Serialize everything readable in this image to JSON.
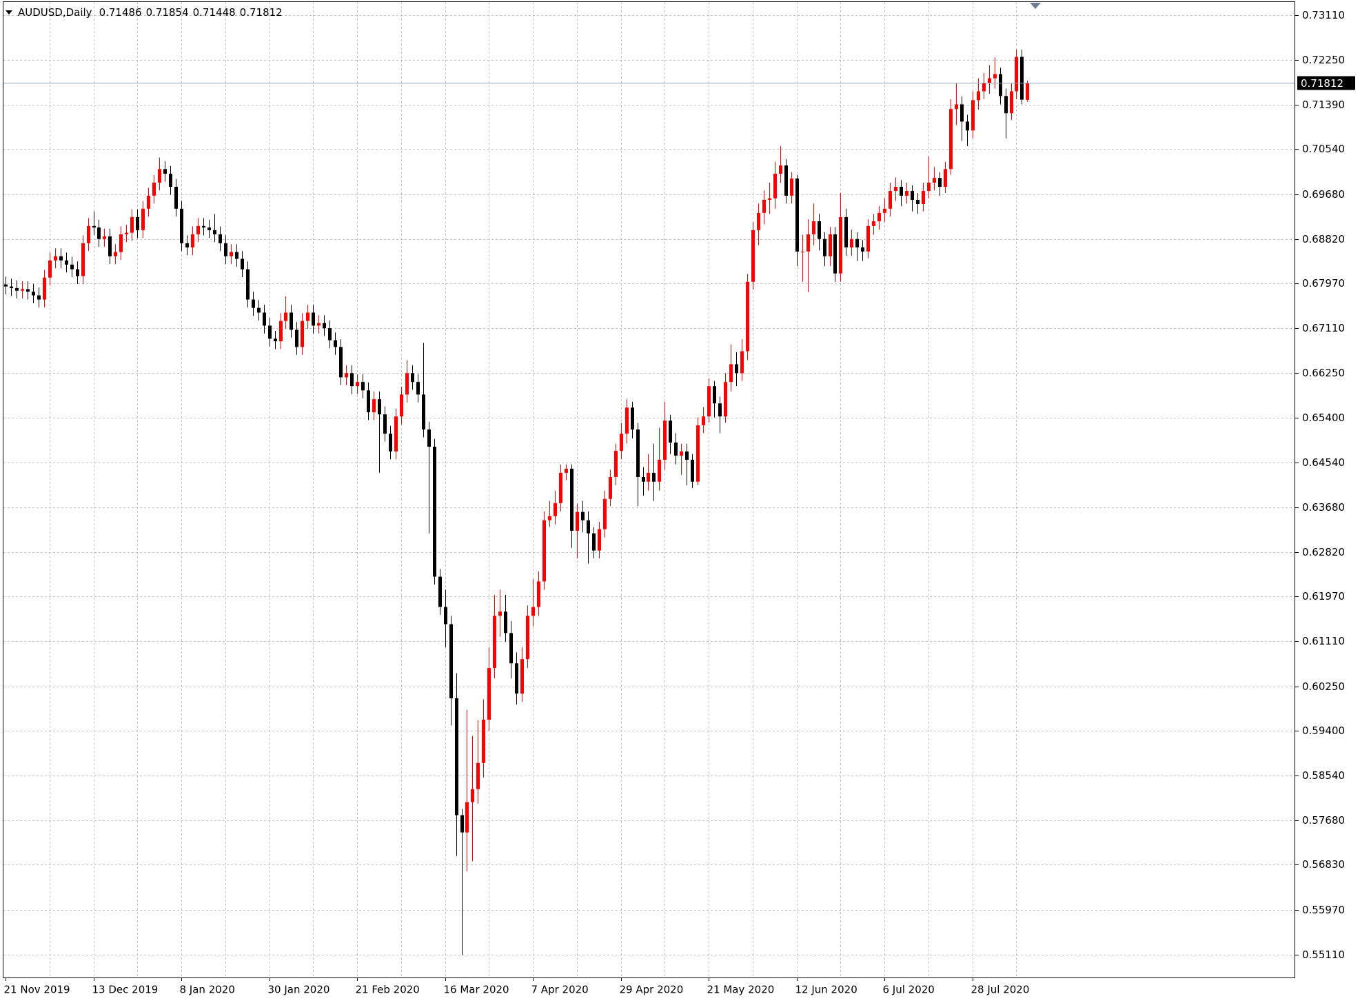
{
  "chart_data": {
    "type": "candlestick",
    "title": "AUDUSD,Daily",
    "up_color": "#ff0000",
    "down_color": "#000000",
    "grid": true,
    "ylim": [
      0.5467,
      0.7336
    ],
    "yticks": [
      {
        "value": 0.7311,
        "label": "0.73110"
      },
      {
        "value": 0.7225,
        "label": "0.72250"
      },
      {
        "value": 0.7139,
        "label": "0.71390"
      },
      {
        "value": 0.7054,
        "label": "0.70540"
      },
      {
        "value": 0.6968,
        "label": "0.69680"
      },
      {
        "value": 0.6882,
        "label": "0.68820"
      },
      {
        "value": 0.6797,
        "label": "0.67970"
      },
      {
        "value": 0.6711,
        "label": "0.67110"
      },
      {
        "value": 0.6625,
        "label": "0.66250"
      },
      {
        "value": 0.654,
        "label": "0.65400"
      },
      {
        "value": 0.6454,
        "label": "0.64540"
      },
      {
        "value": 0.6368,
        "label": "0.63680"
      },
      {
        "value": 0.6282,
        "label": "0.62820"
      },
      {
        "value": 0.6197,
        "label": "0.61970"
      },
      {
        "value": 0.6111,
        "label": "0.61110"
      },
      {
        "value": 0.6025,
        "label": "0.60250"
      },
      {
        "value": 0.594,
        "label": "0.59400"
      },
      {
        "value": 0.5854,
        "label": "0.58540"
      },
      {
        "value": 0.5768,
        "label": "0.57680"
      },
      {
        "value": 0.5683,
        "label": "0.56830"
      },
      {
        "value": 0.5597,
        "label": "0.55970"
      },
      {
        "value": 0.5511,
        "label": "0.55110"
      }
    ],
    "categories": [
      "21 Nov 2019",
      null,
      null,
      null,
      null,
      null,
      null,
      null,
      null,
      null,
      null,
      null,
      null,
      null,
      null,
      null,
      "13 Dec 2019",
      null,
      null,
      null,
      null,
      null,
      null,
      null,
      null,
      null,
      null,
      null,
      null,
      null,
      null,
      null,
      "8 Jan 2020",
      null,
      null,
      null,
      null,
      null,
      null,
      null,
      null,
      null,
      null,
      null,
      null,
      null,
      null,
      null,
      "30 Jan 2020",
      null,
      null,
      null,
      null,
      null,
      null,
      null,
      null,
      null,
      null,
      null,
      null,
      null,
      null,
      null,
      "21 Feb 2020",
      null,
      null,
      null,
      null,
      null,
      null,
      null,
      null,
      null,
      null,
      null,
      null,
      null,
      null,
      null,
      "16 Mar 2020",
      null,
      null,
      null,
      null,
      null,
      null,
      null,
      null,
      null,
      null,
      null,
      null,
      null,
      null,
      null,
      "7 Apr 2020",
      null,
      null,
      null,
      null,
      null,
      null,
      null,
      null,
      null,
      null,
      null,
      null,
      null,
      null,
      null,
      "29 Apr 2020",
      null,
      null,
      null,
      null,
      null,
      null,
      null,
      null,
      null,
      null,
      null,
      null,
      null,
      null,
      null,
      "21 May 2020",
      null,
      null,
      null,
      null,
      null,
      null,
      null,
      null,
      null,
      null,
      null,
      null,
      null,
      null,
      null,
      "12 Jun 2020",
      null,
      null,
      null,
      null,
      null,
      null,
      null,
      null,
      null,
      null,
      null,
      null,
      null,
      null,
      null,
      "6 Jul 2020",
      null,
      null,
      null,
      null,
      null,
      null,
      null,
      null,
      null,
      null,
      null,
      null,
      null,
      null,
      null,
      "28 Jul 2020",
      null,
      null,
      null,
      null,
      null,
      null,
      null,
      null,
      null,
      null
    ],
    "open": [
      0.6795,
      0.6791,
      0.6788,
      0.6783,
      0.6786,
      0.6781,
      0.6774,
      0.6766,
      0.6808,
      0.6841,
      0.6849,
      0.6841,
      0.6833,
      0.6824,
      0.6811,
      0.6874,
      0.6907,
      0.6904,
      0.6882,
      0.6887,
      0.6849,
      0.6857,
      0.6891,
      0.6894,
      0.6924,
      0.6899,
      0.694,
      0.6965,
      0.699,
      0.7016,
      0.7007,
      0.6982,
      0.694,
      0.6874,
      0.6866,
      0.6891,
      0.6907,
      0.6904,
      0.6899,
      0.6891,
      0.6874,
      0.6849,
      0.6857,
      0.6844,
      0.6824,
      0.6766,
      0.675,
      0.6741,
      0.6716,
      0.6691,
      0.6686,
      0.6725,
      0.6741,
      0.6708,
      0.6675,
      0.6725,
      0.6741,
      0.6716,
      0.6721,
      0.6711,
      0.6688,
      0.6675,
      0.6617,
      0.6625,
      0.66,
      0.6608,
      0.6592,
      0.655,
      0.6575,
      0.6546,
      0.6509,
      0.6475,
      0.6542,
      0.6584,
      0.6625,
      0.6608,
      0.6584,
      0.6517,
      0.6484,
      0.6235,
      0.6177,
      0.6144,
      0.6002,
      0.5778,
      0.5745,
      0.5803,
      0.5828,
      0.5878,
      0.5961,
      0.606,
      0.616,
      0.6168,
      0.6127,
      0.6069,
      0.6011,
      0.6077,
      0.616,
      0.6177,
      0.6226,
      0.6343,
      0.6351,
      0.6376,
      0.6434,
      0.6442,
      0.6323,
      0.6359,
      0.6343,
      0.6318,
      0.6285,
      0.6326,
      0.6384,
      0.6426,
      0.6476,
      0.6509,
      0.6559,
      0.6517,
      0.6426,
      0.6417,
      0.6434,
      0.6417,
      0.6459,
      0.6534,
      0.6492,
      0.6467,
      0.6475,
      0.6459,
      0.6417,
      0.6525,
      0.6542,
      0.66,
      0.6567,
      0.6542,
      0.6608,
      0.6642,
      0.6625,
      0.6667,
      0.68,
      0.6899,
      0.6932,
      0.6957,
      0.696,
      0.7007,
      0.7023,
      0.6965,
      0.6998,
      0.6858,
      0.6858,
      0.6891,
      0.6916,
      0.6882,
      0.6849,
      0.6891,
      0.6816,
      0.6924,
      0.6866,
      0.6882,
      0.6866,
      0.6858,
      0.6907,
      0.6916,
      0.6932,
      0.694,
      0.6974,
      0.6982,
      0.6965,
      0.6974,
      0.6957,
      0.6949,
      0.6974,
      0.699,
      0.6999,
      0.6982,
      0.7016,
      0.7131,
      0.714,
      0.7107,
      0.709,
      0.7148,
      0.7165,
      0.7181,
      0.719,
      0.7198,
      0.7156,
      0.7123,
      0.7165,
      0.7231,
      0.71486
    ],
    "high": [
      0.681,
      0.6806,
      0.6803,
      0.6801,
      0.6801,
      0.6796,
      0.6789,
      0.6823,
      0.6856,
      0.6864,
      0.6864,
      0.6856,
      0.6848,
      0.6839,
      0.6889,
      0.6922,
      0.6935,
      0.6919,
      0.6902,
      0.6902,
      0.6872,
      0.6906,
      0.6909,
      0.6939,
      0.6939,
      0.6955,
      0.698,
      0.7005,
      0.7038,
      0.7031,
      0.7022,
      0.6997,
      0.6955,
      0.6889,
      0.6906,
      0.6922,
      0.6922,
      0.6919,
      0.693,
      0.6906,
      0.6889,
      0.6872,
      0.6872,
      0.6859,
      0.6839,
      0.6781,
      0.6765,
      0.6756,
      0.6731,
      0.6706,
      0.674,
      0.6772,
      0.6756,
      0.6723,
      0.674,
      0.6756,
      0.6756,
      0.6736,
      0.6736,
      0.6726,
      0.6703,
      0.669,
      0.664,
      0.664,
      0.6623,
      0.6623,
      0.6607,
      0.659,
      0.659,
      0.6561,
      0.6524,
      0.6557,
      0.6599,
      0.665,
      0.664,
      0.6623,
      0.6683,
      0.6532,
      0.6499,
      0.625,
      0.621,
      0.616,
      0.605,
      0.579,
      0.598,
      0.593,
      0.596,
      0.6,
      0.61,
      0.62,
      0.621,
      0.62,
      0.615,
      0.609,
      0.61,
      0.618,
      0.623,
      0.6245,
      0.636,
      0.638,
      0.64,
      0.645,
      0.645,
      0.645,
      0.6375,
      0.638,
      0.636,
      0.633,
      0.634,
      0.64,
      0.644,
      0.649,
      0.653,
      0.6575,
      0.657,
      0.653,
      0.6445,
      0.647,
      0.649,
      0.652,
      0.657,
      0.6545,
      0.651,
      0.649,
      0.649,
      0.647,
      0.654,
      0.656,
      0.6615,
      0.661,
      0.658,
      0.6625,
      0.668,
      0.6665,
      0.669,
      0.6815,
      0.6915,
      0.695,
      0.6975,
      0.699,
      0.703,
      0.706,
      0.7035,
      0.701,
      0.7005,
      0.689,
      0.692,
      0.695,
      0.693,
      0.6895,
      0.6905,
      0.6905,
      0.697,
      0.694,
      0.69,
      0.6895,
      0.688,
      0.692,
      0.693,
      0.6945,
      0.696,
      0.699,
      0.7,
      0.6995,
      0.699,
      0.6985,
      0.697,
      0.699,
      0.704,
      0.702,
      0.701,
      0.703,
      0.715,
      0.718,
      0.7155,
      0.712,
      0.7165,
      0.719,
      0.72,
      0.7215,
      0.723,
      0.721,
      0.717,
      0.718,
      0.7245,
      0.7245,
      0.71854
    ],
    "low": [
      0.6776,
      0.6773,
      0.6768,
      0.6768,
      0.6766,
      0.6759,
      0.6751,
      0.6751,
      0.6793,
      0.6826,
      0.6826,
      0.6818,
      0.6809,
      0.6796,
      0.6796,
      0.6859,
      0.6889,
      0.6867,
      0.6867,
      0.6834,
      0.6834,
      0.6842,
      0.6876,
      0.6879,
      0.6884,
      0.6884,
      0.6925,
      0.695,
      0.6975,
      0.6992,
      0.6967,
      0.6925,
      0.6859,
      0.6851,
      0.6851,
      0.6876,
      0.6889,
      0.6884,
      0.6876,
      0.6859,
      0.6834,
      0.6834,
      0.6829,
      0.6809,
      0.6751,
      0.6735,
      0.6726,
      0.6701,
      0.6676,
      0.6671,
      0.6671,
      0.671,
      0.6693,
      0.666,
      0.666,
      0.671,
      0.6701,
      0.6701,
      0.6696,
      0.6673,
      0.666,
      0.6602,
      0.6602,
      0.6585,
      0.6585,
      0.6577,
      0.6535,
      0.6535,
      0.6434,
      0.6494,
      0.646,
      0.646,
      0.6527,
      0.6569,
      0.6593,
      0.6569,
      0.6502,
      0.6318,
      0.622,
      0.6162,
      0.61,
      0.595,
      0.57,
      0.551,
      0.567,
      0.569,
      0.58,
      0.585,
      0.594,
      0.604,
      0.612,
      0.611,
      0.604,
      0.599,
      0.5995,
      0.606,
      0.614,
      0.616,
      0.621,
      0.633,
      0.6335,
      0.636,
      0.642,
      0.629,
      0.627,
      0.632,
      0.626,
      0.627,
      0.627,
      0.631,
      0.637,
      0.641,
      0.646,
      0.649,
      0.65,
      0.637,
      0.639,
      0.64,
      0.638,
      0.64,
      0.644,
      0.647,
      0.645,
      0.643,
      0.641,
      0.6405,
      0.641,
      0.651,
      0.653,
      0.654,
      0.651,
      0.653,
      0.659,
      0.66,
      0.661,
      0.665,
      0.6785,
      0.687,
      0.691,
      0.693,
      0.694,
      0.699,
      0.695,
      0.695,
      0.683,
      0.68,
      0.678,
      0.687,
      0.686,
      0.683,
      0.683,
      0.68,
      0.68,
      0.685,
      0.685,
      0.684,
      0.684,
      0.6845,
      0.689,
      0.69,
      0.6915,
      0.6925,
      0.6955,
      0.6945,
      0.695,
      0.6935,
      0.693,
      0.6935,
      0.696,
      0.6975,
      0.6965,
      0.697,
      0.7005,
      0.71,
      0.707,
      0.706,
      0.7075,
      0.713,
      0.715,
      0.716,
      0.717,
      0.714,
      0.7075,
      0.711,
      0.715,
      0.714,
      0.71448
    ],
    "close": [
      0.6791,
      0.6788,
      0.6783,
      0.6786,
      0.6781,
      0.6774,
      0.6766,
      0.6808,
      0.6841,
      0.6849,
      0.6841,
      0.6833,
      0.6824,
      0.6811,
      0.6874,
      0.6907,
      0.6904,
      0.6882,
      0.6887,
      0.6849,
      0.6857,
      0.6891,
      0.6894,
      0.6924,
      0.6899,
      0.694,
      0.6965,
      0.699,
      0.7016,
      0.7007,
      0.6982,
      0.694,
      0.6874,
      0.6866,
      0.6891,
      0.6907,
      0.6904,
      0.6899,
      0.6891,
      0.6874,
      0.6849,
      0.6857,
      0.6844,
      0.6824,
      0.6766,
      0.675,
      0.6741,
      0.6716,
      0.6691,
      0.6686,
      0.6725,
      0.6741,
      0.6708,
      0.6675,
      0.6725,
      0.6741,
      0.6716,
      0.6721,
      0.6711,
      0.6688,
      0.6675,
      0.6617,
      0.6625,
      0.66,
      0.6608,
      0.6592,
      0.655,
      0.6575,
      0.6546,
      0.6509,
      0.6475,
      0.6542,
      0.6584,
      0.6625,
      0.6608,
      0.6584,
      0.6517,
      0.6484,
      0.6235,
      0.6177,
      0.6144,
      0.6002,
      0.5778,
      0.5745,
      0.5803,
      0.5828,
      0.5878,
      0.5961,
      0.606,
      0.616,
      0.6168,
      0.6127,
      0.6069,
      0.6011,
      0.6077,
      0.616,
      0.6177,
      0.6226,
      0.6343,
      0.6351,
      0.6376,
      0.6434,
      0.6442,
      0.6323,
      0.6359,
      0.6343,
      0.6318,
      0.6285,
      0.6326,
      0.6384,
      0.6426,
      0.6476,
      0.6509,
      0.6559,
      0.6517,
      0.6426,
      0.6417,
      0.6434,
      0.6417,
      0.6459,
      0.6534,
      0.6492,
      0.6467,
      0.6475,
      0.6459,
      0.6417,
      0.6525,
      0.6542,
      0.66,
      0.6567,
      0.6542,
      0.6608,
      0.6642,
      0.6625,
      0.6667,
      0.68,
      0.6899,
      0.6932,
      0.6957,
      0.696,
      0.7007,
      0.7023,
      0.6965,
      0.6998,
      0.6858,
      0.6858,
      0.6891,
      0.6916,
      0.6882,
      0.6849,
      0.6891,
      0.6816,
      0.6924,
      0.6866,
      0.6882,
      0.6866,
      0.6858,
      0.6907,
      0.6916,
      0.6932,
      0.694,
      0.6974,
      0.6982,
      0.6965,
      0.6974,
      0.6957,
      0.6949,
      0.6974,
      0.699,
      0.6999,
      0.6982,
      0.7016,
      0.7131,
      0.714,
      0.7107,
      0.709,
      0.7148,
      0.7165,
      0.7181,
      0.719,
      0.7198,
      0.7156,
      0.7123,
      0.7165,
      0.7231,
      0.7149,
      0.71812
    ]
  }
}
